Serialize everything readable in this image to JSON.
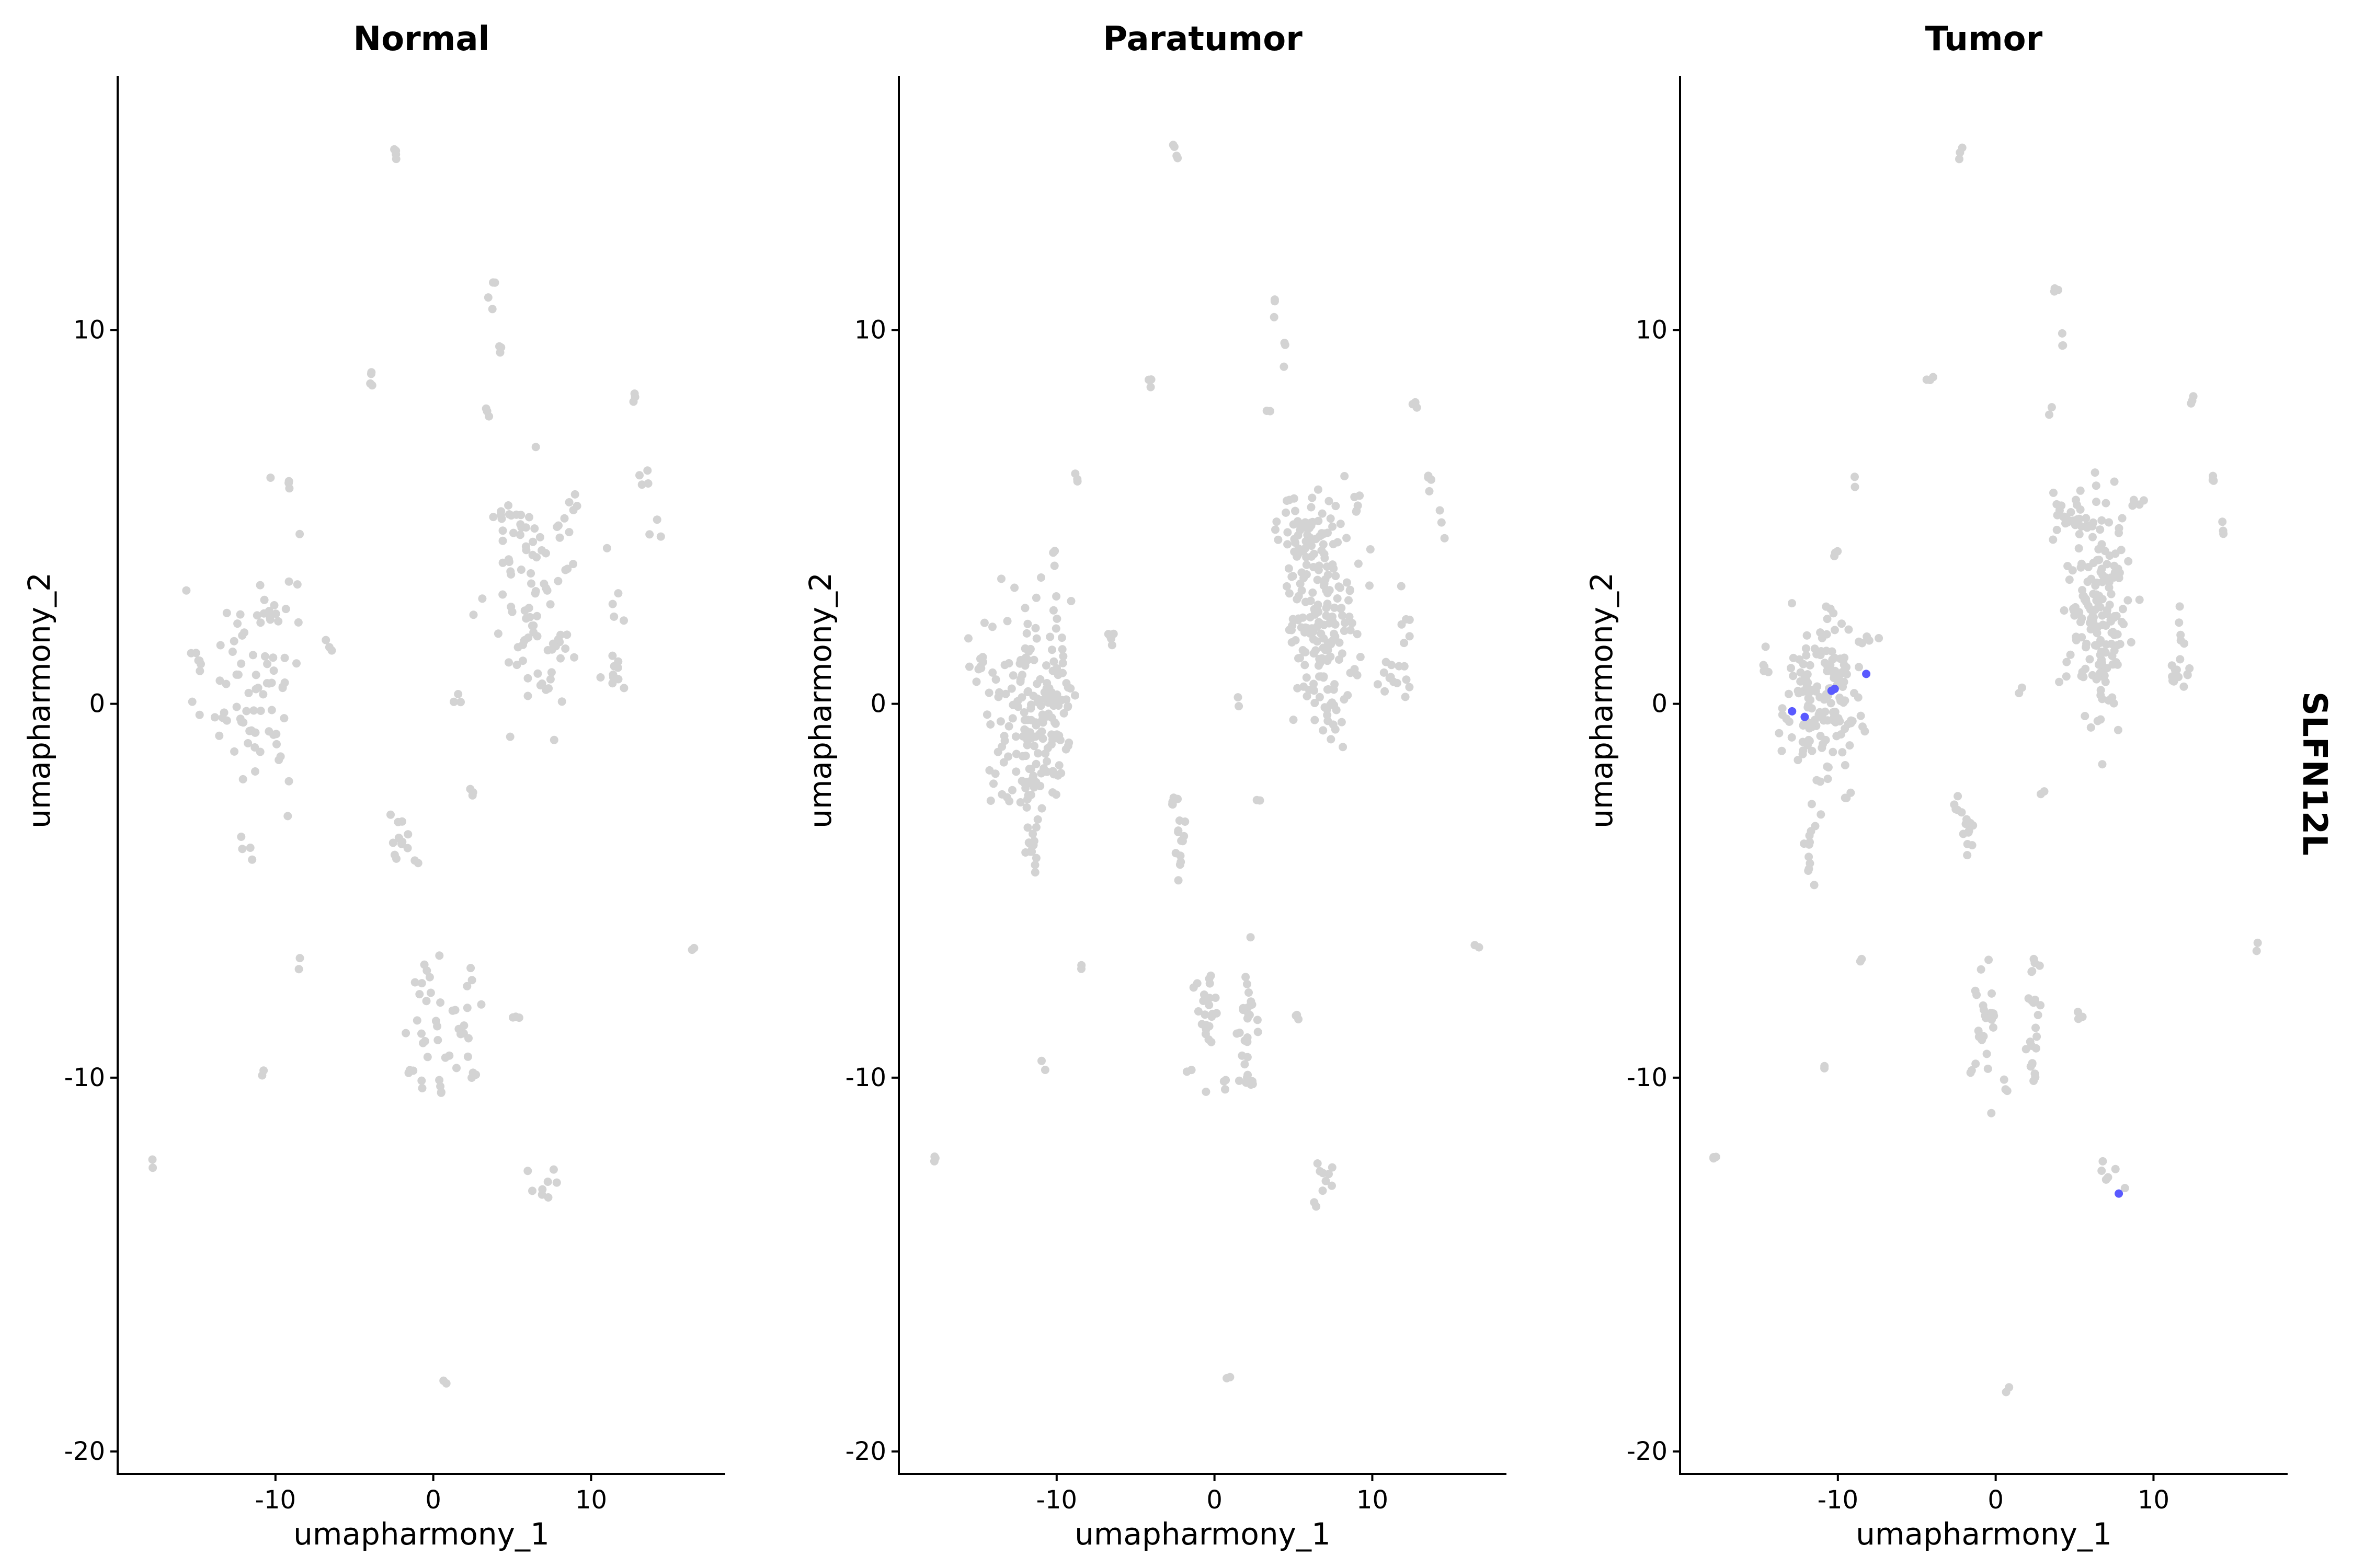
{
  "chart_data": {
    "type": "scatter",
    "gene": "SLFN12L",
    "colors": {
      "low": "#d3d3d3",
      "high": "#5a5aff"
    },
    "xlim": [
      -20,
      18.5
    ],
    "ylim": [
      -20.6,
      16.8
    ],
    "xticks": [
      -10,
      0,
      10
    ],
    "yticks": [
      10,
      0,
      -10,
      -20
    ],
    "xlabel": "umapharmony_1",
    "ylabel": "umapharmony_2",
    "panels": [
      {
        "title": "Normal",
        "clusters": [
          {
            "cx": -12.5,
            "cy": 0.5,
            "sx": 1.3,
            "sy": 1.3,
            "n": 45
          },
          {
            "cx": -10.3,
            "cy": 1.5,
            "sx": 0.9,
            "sy": 1.8,
            "n": 25
          },
          {
            "cx": -9.8,
            "cy": 0.5,
            "sx": 0.5,
            "sy": 2.5,
            "n": 14
          },
          {
            "cx": -11.8,
            "cy": -3.9,
            "sx": 0.3,
            "sy": 0.4,
            "n": 4
          },
          {
            "cx": -14.8,
            "cy": 1.1,
            "sx": 0.2,
            "sy": 0.2,
            "n": 5
          },
          {
            "cx": -9.0,
            "cy": 5.9,
            "sx": 0.15,
            "sy": 0.1,
            "n": 3
          },
          {
            "cx": -6.8,
            "cy": 1.7,
            "sx": 0.2,
            "sy": 0.15,
            "n": 3
          },
          {
            "cx": -8.5,
            "cy": -7.0,
            "sx": 0.1,
            "sy": 0.1,
            "n": 2
          },
          {
            "cx": -10.8,
            "cy": -9.8,
            "sx": 0.1,
            "sy": 0.1,
            "n": 2
          },
          {
            "cx": -17.8,
            "cy": -12.2,
            "sx": 0.1,
            "sy": 0.1,
            "n": 2
          },
          {
            "cx": -2.5,
            "cy": 14.7,
            "sx": 0.15,
            "sy": 0.15,
            "n": 4
          },
          {
            "cx": -4.0,
            "cy": 8.8,
            "sx": 0.15,
            "sy": 0.2,
            "n": 4
          },
          {
            "cx": 3.7,
            "cy": 10.8,
            "sx": 0.1,
            "sy": 0.3,
            "n": 4
          },
          {
            "cx": 4.3,
            "cy": 9.5,
            "sx": 0.1,
            "sy": 0.15,
            "n": 3
          },
          {
            "cx": 3.4,
            "cy": 7.8,
            "sx": 0.1,
            "sy": 0.15,
            "n": 3
          },
          {
            "cx": 6.5,
            "cy": 3.0,
            "sx": 1.4,
            "sy": 1.5,
            "n": 70
          },
          {
            "cx": 5.0,
            "cy": 5.0,
            "sx": 0.8,
            "sy": 0.3,
            "n": 15
          },
          {
            "cx": 7.5,
            "cy": 0.5,
            "sx": 0.6,
            "sy": 0.8,
            "n": 12
          },
          {
            "cx": 9.0,
            "cy": 5.5,
            "sx": 0.2,
            "sy": 0.2,
            "n": 4
          },
          {
            "cx": 12.8,
            "cy": 8.1,
            "sx": 0.1,
            "sy": 0.15,
            "n": 3
          },
          {
            "cx": 13.5,
            "cy": 6.0,
            "sx": 0.2,
            "sy": 0.2,
            "n": 4
          },
          {
            "cx": 14.2,
            "cy": 4.5,
            "sx": 0.2,
            "sy": 0.3,
            "n": 3
          },
          {
            "cx": 11.5,
            "cy": 0.7,
            "sx": 0.4,
            "sy": 0.25,
            "n": 10
          },
          {
            "cx": 11.8,
            "cy": 2.2,
            "sx": 0.3,
            "sy": 0.4,
            "n": 5
          },
          {
            "cx": 1.5,
            "cy": 0.1,
            "sx": 0.15,
            "sy": 0.1,
            "n": 3
          },
          {
            "cx": -2.0,
            "cy": -3.4,
            "sx": 0.5,
            "sy": 0.5,
            "n": 14
          },
          {
            "cx": 2.5,
            "cy": -2.2,
            "sx": 0.15,
            "sy": 0.3,
            "n": 3
          },
          {
            "cx": -0.3,
            "cy": -8.5,
            "sx": 0.6,
            "sy": 0.9,
            "n": 22
          },
          {
            "cx": 1.8,
            "cy": -8.8,
            "sx": 0.6,
            "sy": 0.7,
            "n": 12
          },
          {
            "cx": 0.5,
            "cy": -10.3,
            "sx": 0.2,
            "sy": 0.2,
            "n": 4
          },
          {
            "cx": 2.4,
            "cy": -7.3,
            "sx": 0.1,
            "sy": 0.3,
            "n": 3
          },
          {
            "cx": -1.5,
            "cy": -9.8,
            "sx": 0.2,
            "sy": 0.1,
            "n": 3
          },
          {
            "cx": 2.5,
            "cy": -9.9,
            "sx": 0.15,
            "sy": 0.2,
            "n": 3
          },
          {
            "cx": 5.2,
            "cy": -8.4,
            "sx": 0.15,
            "sy": 0.1,
            "n": 3
          },
          {
            "cx": 7.2,
            "cy": -12.8,
            "sx": 0.5,
            "sy": 0.4,
            "n": 8
          },
          {
            "cx": 16.5,
            "cy": -6.5,
            "sx": 0.1,
            "sy": 0.1,
            "n": 2
          },
          {
            "cx": 0.8,
            "cy": -18.2,
            "sx": 0.1,
            "sy": 0.1,
            "n": 2
          }
        ],
        "expressed": []
      },
      {
        "title": "Paratumor",
        "clusters": [
          {
            "cx": -12.0,
            "cy": -0.3,
            "sx": 1.4,
            "sy": 1.3,
            "n": 110
          },
          {
            "cx": -10.0,
            "cy": 0.5,
            "sx": 0.7,
            "sy": 1.3,
            "n": 55
          },
          {
            "cx": -11.5,
            "cy": -1.8,
            "sx": 0.5,
            "sy": 0.7,
            "n": 25
          },
          {
            "cx": -11.6,
            "cy": -4.0,
            "sx": 0.25,
            "sy": 0.4,
            "n": 12
          },
          {
            "cx": -14.8,
            "cy": 1.0,
            "sx": 0.25,
            "sy": 0.25,
            "n": 8
          },
          {
            "cx": -8.8,
            "cy": 6.0,
            "sx": 0.1,
            "sy": 0.1,
            "n": 3
          },
          {
            "cx": -6.6,
            "cy": 1.7,
            "sx": 0.2,
            "sy": 0.15,
            "n": 5
          },
          {
            "cx": -10.1,
            "cy": 4.0,
            "sx": 0.15,
            "sy": 0.15,
            "n": 3
          },
          {
            "cx": -8.5,
            "cy": -7.0,
            "sx": 0.1,
            "sy": 0.1,
            "n": 2
          },
          {
            "cx": -10.8,
            "cy": -9.7,
            "sx": 0.1,
            "sy": 0.1,
            "n": 2
          },
          {
            "cx": -17.7,
            "cy": -12.2,
            "sx": 0.1,
            "sy": 0.15,
            "n": 3
          },
          {
            "cx": -2.5,
            "cy": 14.7,
            "sx": 0.15,
            "sy": 0.15,
            "n": 4
          },
          {
            "cx": -4.0,
            "cy": 8.7,
            "sx": 0.15,
            "sy": 0.15,
            "n": 3
          },
          {
            "cx": 3.8,
            "cy": 11.0,
            "sx": 0.1,
            "sy": 0.2,
            "n": 3
          },
          {
            "cx": 4.5,
            "cy": 9.4,
            "sx": 0.1,
            "sy": 0.2,
            "n": 3
          },
          {
            "cx": 3.5,
            "cy": 7.8,
            "sx": 0.1,
            "sy": 0.1,
            "n": 2
          },
          {
            "cx": 6.7,
            "cy": 2.8,
            "sx": 1.1,
            "sy": 1.3,
            "n": 160
          },
          {
            "cx": 5.5,
            "cy": 4.8,
            "sx": 0.8,
            "sy": 0.4,
            "n": 30
          },
          {
            "cx": 7.3,
            "cy": 0.2,
            "sx": 0.7,
            "sy": 0.7,
            "n": 30
          },
          {
            "cx": 9.0,
            "cy": 5.4,
            "sx": 0.2,
            "sy": 0.2,
            "n": 5
          },
          {
            "cx": 12.7,
            "cy": 8.1,
            "sx": 0.1,
            "sy": 0.1,
            "n": 3
          },
          {
            "cx": 13.6,
            "cy": 6.0,
            "sx": 0.15,
            "sy": 0.2,
            "n": 4
          },
          {
            "cx": 14.3,
            "cy": 4.4,
            "sx": 0.15,
            "sy": 0.3,
            "n": 3
          },
          {
            "cx": 11.5,
            "cy": 0.7,
            "sx": 0.5,
            "sy": 0.3,
            "n": 14
          },
          {
            "cx": 11.9,
            "cy": 2.2,
            "sx": 0.3,
            "sy": 0.4,
            "n": 6
          },
          {
            "cx": 1.5,
            "cy": 0.1,
            "sx": 0.1,
            "sy": 0.1,
            "n": 2
          },
          {
            "cx": -2.6,
            "cy": -2.7,
            "sx": 0.2,
            "sy": 0.15,
            "n": 5
          },
          {
            "cx": -2.0,
            "cy": -3.6,
            "sx": 0.3,
            "sy": 0.4,
            "n": 12
          },
          {
            "cx": 2.8,
            "cy": -2.5,
            "sx": 0.1,
            "sy": 0.1,
            "n": 2
          },
          {
            "cx": -0.5,
            "cy": -8.5,
            "sx": 0.4,
            "sy": 0.8,
            "n": 25
          },
          {
            "cx": 2.1,
            "cy": -8.5,
            "sx": 0.5,
            "sy": 0.8,
            "n": 25
          },
          {
            "cx": 0.6,
            "cy": -10.3,
            "sx": 0.1,
            "sy": 0.15,
            "n": 3
          },
          {
            "cx": -1.6,
            "cy": -9.8,
            "sx": 0.1,
            "sy": 0.1,
            "n": 2
          },
          {
            "cx": 2.3,
            "cy": -10.0,
            "sx": 0.15,
            "sy": 0.2,
            "n": 4
          },
          {
            "cx": 5.3,
            "cy": -8.3,
            "sx": 0.1,
            "sy": 0.1,
            "n": 3
          },
          {
            "cx": 7.2,
            "cy": -12.8,
            "sx": 0.4,
            "sy": 0.4,
            "n": 10
          },
          {
            "cx": 16.5,
            "cy": -6.5,
            "sx": 0.1,
            "sy": 0.1,
            "n": 2
          },
          {
            "cx": 0.8,
            "cy": -18.2,
            "sx": 0.1,
            "sy": 0.1,
            "n": 2
          }
        ],
        "expressed": []
      },
      {
        "title": "Tumor",
        "clusters": [
          {
            "cx": -11.5,
            "cy": 0.0,
            "sx": 1.1,
            "sy": 1.1,
            "n": 110
          },
          {
            "cx": -9.8,
            "cy": 0.2,
            "sx": 0.6,
            "sy": 1.0,
            "n": 45
          },
          {
            "cx": -11.7,
            "cy": -3.8,
            "sx": 0.2,
            "sy": 0.5,
            "n": 12
          },
          {
            "cx": -14.8,
            "cy": 1.1,
            "sx": 0.2,
            "sy": 0.2,
            "n": 5
          },
          {
            "cx": -10.2,
            "cy": 4.0,
            "sx": 0.1,
            "sy": 0.15,
            "n": 3
          },
          {
            "cx": -9.0,
            "cy": 5.9,
            "sx": 0.1,
            "sy": 0.1,
            "n": 2
          },
          {
            "cx": -8.0,
            "cy": 1.7,
            "sx": 0.3,
            "sy": 0.15,
            "n": 5
          },
          {
            "cx": -8.5,
            "cy": -6.9,
            "sx": 0.1,
            "sy": 0.1,
            "n": 2
          },
          {
            "cx": -10.8,
            "cy": -9.8,
            "sx": 0.1,
            "sy": 0.1,
            "n": 2
          },
          {
            "cx": -17.7,
            "cy": -12.2,
            "sx": 0.1,
            "sy": 0.15,
            "n": 3
          },
          {
            "cx": -2.3,
            "cy": 14.8,
            "sx": 0.1,
            "sy": 0.1,
            "n": 3
          },
          {
            "cx": -4.2,
            "cy": 8.7,
            "sx": 0.15,
            "sy": 0.1,
            "n": 3
          },
          {
            "cx": 3.8,
            "cy": 10.9,
            "sx": 0.15,
            "sy": 0.2,
            "n": 3
          },
          {
            "cx": 4.2,
            "cy": 9.6,
            "sx": 0.1,
            "sy": 0.3,
            "n": 3
          },
          {
            "cx": 3.5,
            "cy": 7.8,
            "sx": 0.1,
            "sy": 0.1,
            "n": 2
          },
          {
            "cx": 6.5,
            "cy": 2.8,
            "sx": 1.0,
            "sy": 1.3,
            "n": 150
          },
          {
            "cx": 5.0,
            "cy": 5.0,
            "sx": 0.8,
            "sy": 0.3,
            "n": 25
          },
          {
            "cx": 7.0,
            "cy": 0.5,
            "sx": 0.5,
            "sy": 0.7,
            "n": 20
          },
          {
            "cx": 9.0,
            "cy": 5.4,
            "sx": 0.2,
            "sy": 0.2,
            "n": 4
          },
          {
            "cx": 12.5,
            "cy": 8.0,
            "sx": 0.1,
            "sy": 0.15,
            "n": 3
          },
          {
            "cx": 13.8,
            "cy": 6.0,
            "sx": 0.1,
            "sy": 0.15,
            "n": 3
          },
          {
            "cx": 14.4,
            "cy": 4.4,
            "sx": 0.1,
            "sy": 0.15,
            "n": 3
          },
          {
            "cx": 11.5,
            "cy": 0.7,
            "sx": 0.4,
            "sy": 0.25,
            "n": 12
          },
          {
            "cx": 11.8,
            "cy": 2.2,
            "sx": 0.3,
            "sy": 0.4,
            "n": 5
          },
          {
            "cx": 1.6,
            "cy": 0.1,
            "sx": 0.1,
            "sy": 0.1,
            "n": 2
          },
          {
            "cx": -2.5,
            "cy": -2.8,
            "sx": 0.2,
            "sy": 0.2,
            "n": 5
          },
          {
            "cx": -1.8,
            "cy": -3.6,
            "sx": 0.3,
            "sy": 0.4,
            "n": 10
          },
          {
            "cx": 2.9,
            "cy": -2.4,
            "sx": 0.1,
            "sy": 0.1,
            "n": 2
          },
          {
            "cx": -0.5,
            "cy": -8.5,
            "sx": 0.4,
            "sy": 0.8,
            "n": 22
          },
          {
            "cx": 2.3,
            "cy": -8.3,
            "sx": 0.3,
            "sy": 0.9,
            "n": 20
          },
          {
            "cx": 0.6,
            "cy": -10.3,
            "sx": 0.1,
            "sy": 0.15,
            "n": 3
          },
          {
            "cx": -1.6,
            "cy": -9.8,
            "sx": 0.1,
            "sy": 0.1,
            "n": 2
          },
          {
            "cx": 2.5,
            "cy": -9.9,
            "sx": 0.1,
            "sy": 0.15,
            "n": 3
          },
          {
            "cx": 5.3,
            "cy": -8.3,
            "sx": 0.1,
            "sy": 0.1,
            "n": 3
          },
          {
            "cx": 7.2,
            "cy": -12.8,
            "sx": 0.4,
            "sy": 0.4,
            "n": 6
          },
          {
            "cx": 16.5,
            "cy": -6.5,
            "sx": 0.1,
            "sy": 0.1,
            "n": 2
          },
          {
            "cx": 0.8,
            "cy": -18.2,
            "sx": 0.1,
            "sy": 0.1,
            "n": 2
          }
        ],
        "expressed": [
          {
            "x": -12.9,
            "y": -0.2
          },
          {
            "x": -12.1,
            "y": -0.35
          },
          {
            "x": -10.4,
            "y": 0.35
          },
          {
            "x": -10.2,
            "y": 0.4
          },
          {
            "x": -8.2,
            "y": 0.8
          },
          {
            "x": 7.8,
            "y": -13.1
          }
        ]
      }
    ]
  }
}
